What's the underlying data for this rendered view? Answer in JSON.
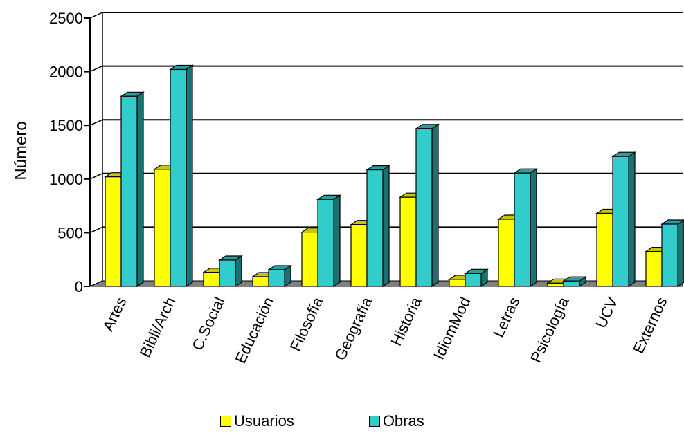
{
  "chart_data": {
    "type": "bar",
    "title": "",
    "xlabel": "",
    "ylabel": "Número",
    "ylim": [
      0,
      2500
    ],
    "yticks": [
      0,
      500,
      1000,
      1500,
      2000,
      2500
    ],
    "grid": true,
    "legend_position": "bottom",
    "categories": [
      "Artes",
      "Bibli/Arch",
      "C.Social",
      "Educación",
      "Filosofía",
      "Geografía",
      "Historia",
      "IdiomMod",
      "Letras",
      "Psicología",
      "UCV",
      "Externos"
    ],
    "series": [
      {
        "name": "Usuarios",
        "color": "#ffff00",
        "values": [
          1020,
          1090,
          130,
          90,
          505,
          575,
          830,
          65,
          625,
          30,
          680,
          325
        ]
      },
      {
        "name": "Obras",
        "color": "#33cccc",
        "values": [
          1770,
          2020,
          245,
          155,
          810,
          1085,
          1470,
          120,
          1055,
          50,
          1210,
          580
        ]
      }
    ]
  }
}
